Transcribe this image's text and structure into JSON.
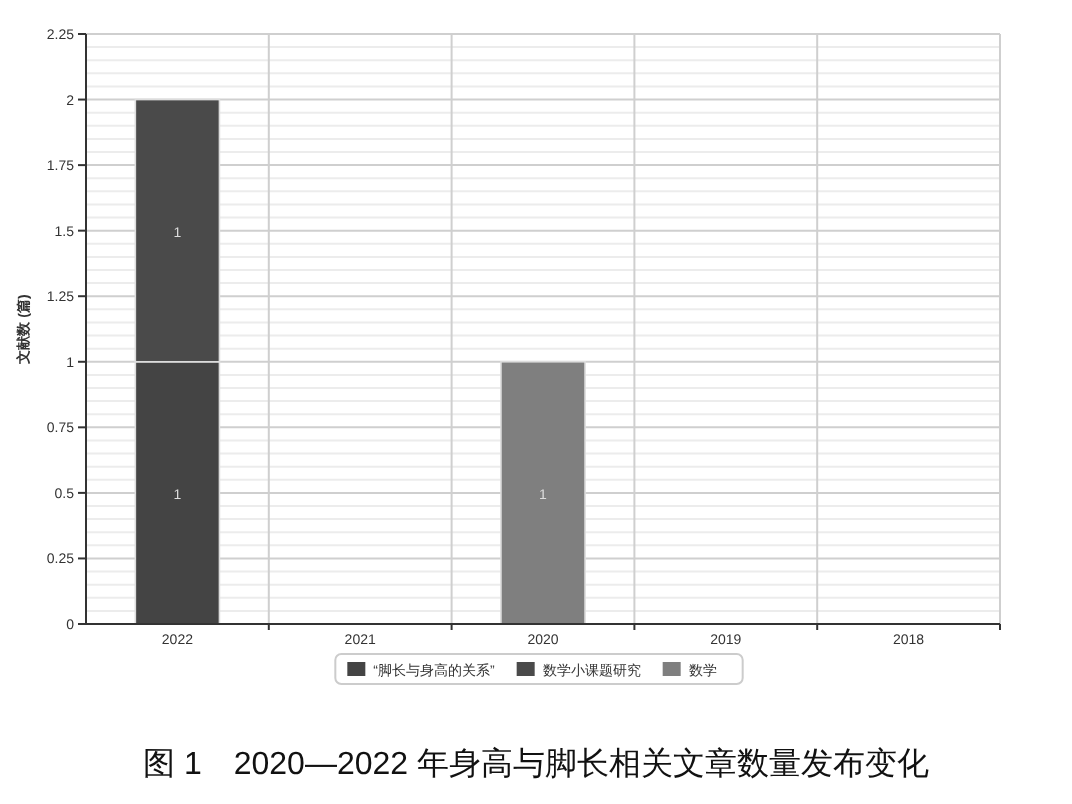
{
  "chart_data": {
    "type": "bar",
    "stacked": true,
    "ylabel": "文献数 (篇)",
    "categories": [
      "2022",
      "2021",
      "2020",
      "2019",
      "2018"
    ],
    "series": [
      {
        "name": "“脚长与身高的关系”",
        "color": "#444444",
        "values": [
          1,
          null,
          null,
          null,
          null
        ]
      },
      {
        "name": "数学小课题研究",
        "color": "#4a4a4a",
        "values": [
          1,
          null,
          null,
          null,
          null
        ]
      },
      {
        "name": "数学",
        "color": "#7f7f7f",
        "values": [
          null,
          null,
          1,
          null,
          null
        ]
      }
    ],
    "ylim": [
      0,
      2.25
    ],
    "yticks": [
      0,
      0.25,
      0.5,
      0.75,
      1,
      1.25,
      1.5,
      1.75,
      2,
      2.25
    ],
    "grid": true,
    "legend": "bottom",
    "data_labels": true,
    "annotations": [
      "图 1　2020—2022 年身高与脚长相关文章数量发布变化"
    ]
  }
}
